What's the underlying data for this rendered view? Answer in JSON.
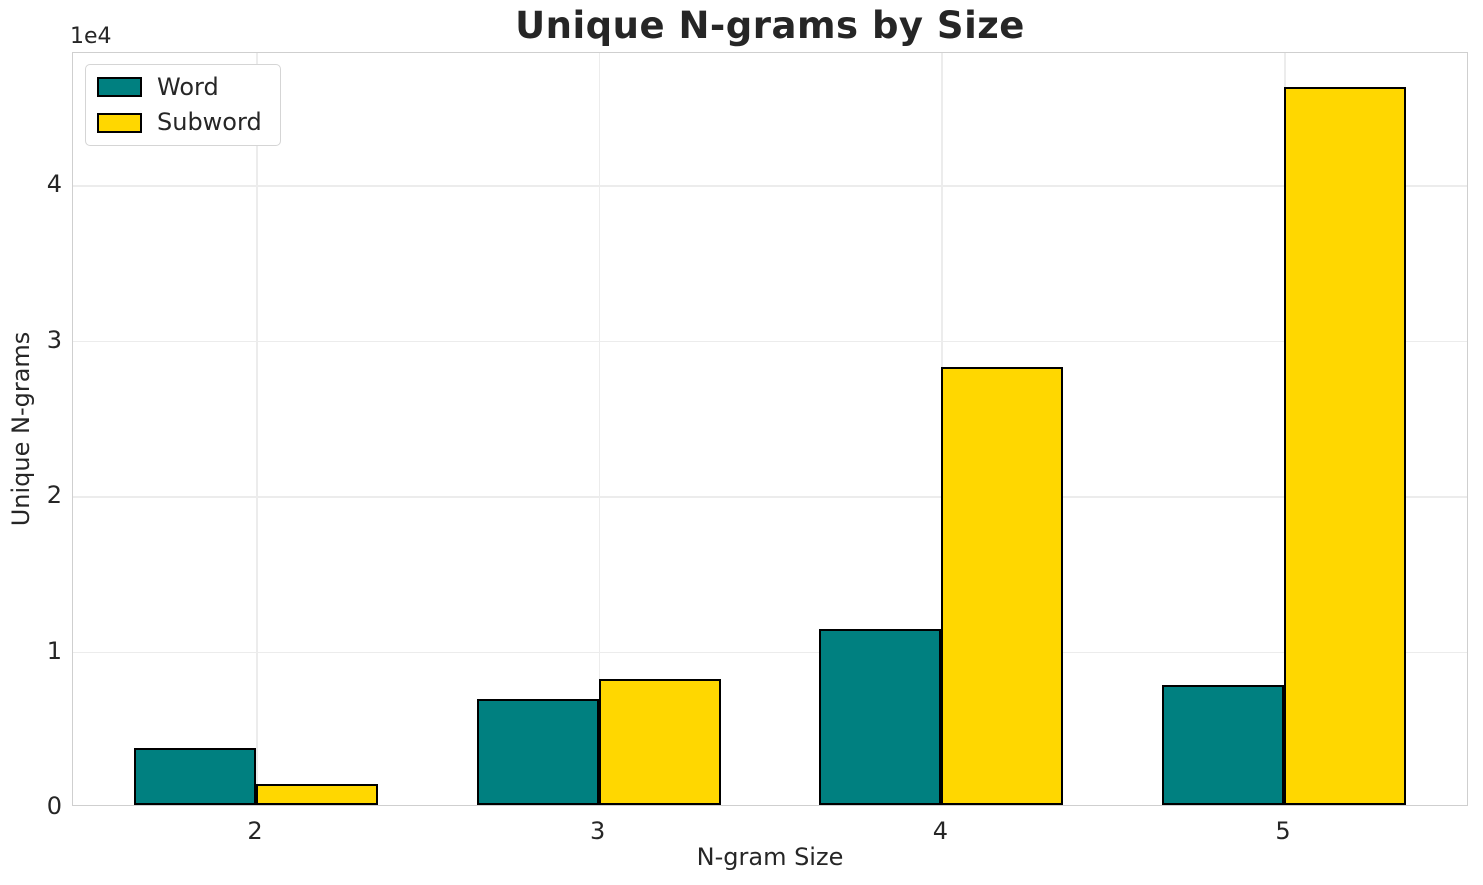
{
  "chart_data": {
    "type": "bar",
    "title": "Unique N-grams by Size",
    "xlabel": "N-gram Size",
    "ylabel": "Unique N-grams",
    "categories": [
      "2",
      "3",
      "4",
      "5"
    ],
    "series": [
      {
        "name": "Word",
        "color": "#008080",
        "values": [
          3700,
          6800,
          11300,
          7700
        ]
      },
      {
        "name": "Subword",
        "color": "#FFD700",
        "values": [
          1350,
          8100,
          28200,
          46200
        ]
      }
    ],
    "ylim": [
      0,
      48510
    ],
    "yticks": [
      0,
      10000,
      20000,
      30000,
      40000
    ],
    "ytick_labels": [
      "0",
      "1",
      "2",
      "3",
      "4"
    ],
    "offset_text": "1e4",
    "grid": true,
    "legend_position": "upper left",
    "bar_edge_color": "#000000",
    "background_color": "#ffffff",
    "grid_color": "#ececec",
    "spine_color": "#cfcfcf",
    "text_color": "#262626"
  }
}
